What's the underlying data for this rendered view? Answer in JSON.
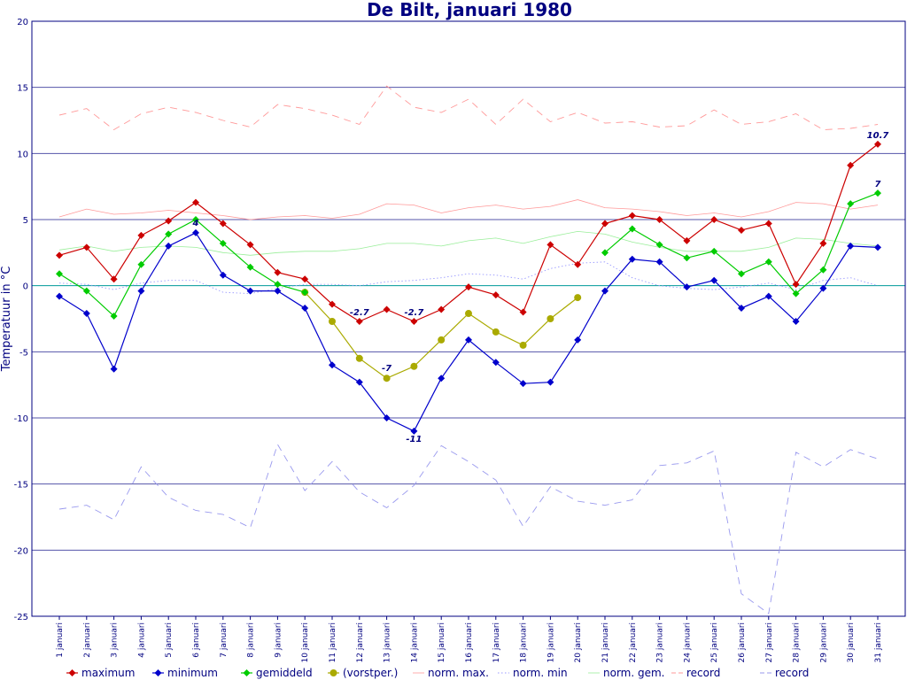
{
  "chart_data": {
    "type": "line",
    "title": "De Bilt, januari 1980",
    "ylabel": "Temperatuur in °C",
    "ylim": [
      -25,
      20
    ],
    "yticks": [
      20,
      15,
      10,
      5,
      0,
      -5,
      -10,
      -15,
      -20,
      -25
    ],
    "grid": true,
    "legend_position": "bottom",
    "categories": [
      "1 januari",
      "2 januari",
      "3 januari",
      "4 januari",
      "5 januari",
      "6 januari",
      "7 januari",
      "8 januari",
      "9 januari",
      "10 januari",
      "11 januari",
      "12 januari",
      "13 januari",
      "14 januari",
      "15 januari",
      "16 januari",
      "17 januari",
      "18 januari",
      "19 januari",
      "20 januari",
      "21 januari",
      "22 januari",
      "23 januari",
      "24 januari",
      "25 januari",
      "26 januari",
      "27 januari",
      "28 januari",
      "29 januari",
      "30 januari",
      "31 januari"
    ],
    "series": [
      {
        "name": "maximum",
        "color": "#cc0000",
        "marker": "diamond",
        "style": "solid",
        "values": [
          2.3,
          2.9,
          0.5,
          3.8,
          4.9,
          6.3,
          4.7,
          3.1,
          1.0,
          0.5,
          -1.4,
          -2.7,
          -1.8,
          -2.7,
          -1.8,
          -0.1,
          -0.7,
          -2.0,
          3.1,
          1.6,
          4.7,
          5.3,
          5.0,
          3.4,
          5.0,
          4.2,
          4.7,
          0.1,
          3.2,
          9.1,
          10.7
        ]
      },
      {
        "name": "minimum",
        "color": "#0000cc",
        "marker": "diamond",
        "style": "solid",
        "values": [
          -0.8,
          -2.1,
          -6.3,
          -0.4,
          3.0,
          4.0,
          0.8,
          -0.4,
          -0.4,
          -1.7,
          -6.0,
          -7.3,
          -10.0,
          -11.0,
          -7.0,
          -4.1,
          -5.8,
          -7.4,
          -7.3,
          -4.1,
          -0.4,
          2.0,
          1.8,
          -0.1,
          0.4,
          -1.7,
          -0.8,
          -2.7,
          -0.2,
          3.0,
          2.9
        ]
      },
      {
        "name": "gemiddeld",
        "color": "#00cc00",
        "marker": "diamond",
        "style": "solid",
        "values": [
          0.9,
          -0.4,
          -2.3,
          1.6,
          3.9,
          5.0,
          3.2,
          1.4,
          0.1,
          -0.5,
          null,
          null,
          null,
          null,
          null,
          null,
          null,
          null,
          null,
          null,
          2.5,
          4.3,
          3.1,
          2.1,
          2.6,
          0.9,
          1.8,
          -0.6,
          1.2,
          6.2,
          7.0
        ]
      },
      {
        "name": "(vorstper.)",
        "color": "#aaaa00",
        "marker": "circle",
        "style": "solid",
        "values": [
          null,
          null,
          null,
          null,
          null,
          null,
          null,
          null,
          null,
          -0.5,
          -2.7,
          -5.5,
          -7.0,
          -6.1,
          -4.1,
          -2.1,
          -3.5,
          -4.5,
          -2.5,
          -0.9,
          null,
          null,
          null,
          null,
          null,
          null,
          null,
          null,
          null,
          null,
          null
        ]
      },
      {
        "name": "norm. max.",
        "color": "#ff9999",
        "marker": "none",
        "style": "thin",
        "values": [
          5.2,
          5.8,
          5.4,
          5.5,
          5.7,
          5.5,
          5.3,
          5.0,
          5.2,
          5.3,
          5.1,
          5.4,
          6.2,
          6.1,
          5.5,
          5.9,
          6.1,
          5.8,
          6.0,
          6.5,
          5.9,
          5.8,
          5.6,
          5.3,
          5.5,
          5.2,
          5.6,
          6.3,
          6.2,
          5.8,
          6.1
        ]
      },
      {
        "name": "norm. min",
        "color": "#9999ff",
        "marker": "none",
        "style": "dotted",
        "values": [
          0.2,
          0.1,
          -0.3,
          0.2,
          0.4,
          0.4,
          -0.5,
          -0.6,
          -0.2,
          0.1,
          0.1,
          0.0,
          0.3,
          0.4,
          0.6,
          0.9,
          0.8,
          0.5,
          1.3,
          1.7,
          1.8,
          0.6,
          0.0,
          -0.2,
          -0.3,
          -0.1,
          0.2,
          -0.3,
          0.4,
          0.6,
          0.0
        ]
      },
      {
        "name": "norm. gem.",
        "color": "#99ee99",
        "marker": "none",
        "style": "thin",
        "values": [
          2.7,
          3.0,
          2.6,
          2.9,
          3.0,
          2.9,
          2.5,
          2.3,
          2.5,
          2.6,
          2.6,
          2.8,
          3.2,
          3.2,
          3.0,
          3.4,
          3.6,
          3.2,
          3.7,
          4.1,
          3.9,
          3.3,
          2.9,
          2.6,
          2.6,
          2.6,
          2.9,
          3.6,
          3.5,
          3.2,
          3.0
        ]
      },
      {
        "name": "record",
        "color": "#ff9999",
        "marker": "none",
        "style": "dashed",
        "values": [
          12.9,
          13.4,
          11.8,
          13.0,
          13.5,
          13.1,
          12.5,
          12.0,
          13.7,
          13.4,
          12.9,
          12.2,
          15.1,
          13.5,
          13.1,
          14.1,
          12.2,
          14.1,
          12.4,
          13.1,
          12.3,
          12.4,
          12.0,
          12.1,
          13.3,
          12.2,
          12.4,
          13.0,
          11.8,
          11.9,
          12.2
        ]
      },
      {
        "name": "record",
        "color": "#9999ee",
        "marker": "none",
        "style": "dashed",
        "values": [
          -16.9,
          -16.6,
          -17.7,
          -13.7,
          -16.0,
          -17.0,
          -17.3,
          -18.3,
          -12.0,
          -15.5,
          -13.3,
          -15.6,
          -16.8,
          -15.1,
          -12.1,
          -13.3,
          -14.7,
          -18.2,
          -15.2,
          -16.3,
          -16.6,
          -16.2,
          -13.6,
          -13.4,
          -12.5,
          -23.3,
          -24.8,
          -12.6,
          -13.7,
          -12.4,
          -13.1
        ]
      }
    ],
    "annotations": [
      {
        "series": "maximum",
        "x": "12 januari",
        "y": -2.7,
        "text": "-2.7"
      },
      {
        "series": "maximum",
        "x": "14 januari",
        "y": -2.7,
        "text": "-2.7"
      },
      {
        "series": "maximum",
        "x": "31 januari",
        "y": 10.7,
        "text": "10.7"
      },
      {
        "series": "minimum",
        "x": "6 januari",
        "y": 4.0,
        "text": "4"
      },
      {
        "series": "minimum",
        "x": "14 januari",
        "y": -11.0,
        "text": "-11"
      },
      {
        "series": "(vorstper.)",
        "x": "13 januari",
        "y": -7.0,
        "text": "-7"
      },
      {
        "series": "gemiddeld",
        "x": "31 januari",
        "y": 7.0,
        "text": "7"
      }
    ]
  }
}
